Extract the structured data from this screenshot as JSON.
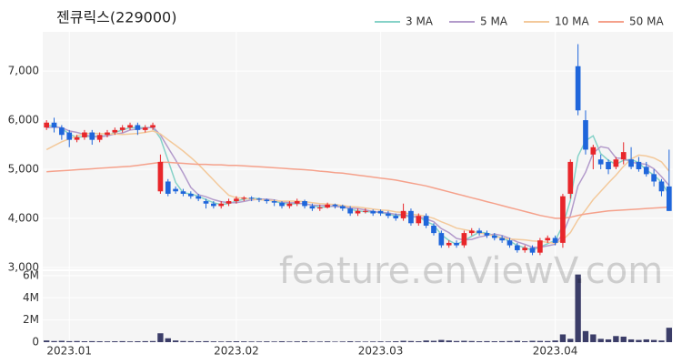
{
  "chart_data": {
    "type": "candlestick",
    "title": "젠큐릭스(229000)",
    "watermark": "feature.enViewV.com",
    "legend": "top-right",
    "grid": true,
    "up_color": "#e8262a",
    "down_color": "#1f66db",
    "categories": [
      null,
      null,
      null,
      "2023.01",
      null,
      null,
      null,
      null,
      null,
      null,
      null,
      null,
      null,
      null,
      null,
      null,
      null,
      null,
      null,
      null,
      null,
      null,
      null,
      null,
      null,
      "2023.02",
      null,
      null,
      null,
      null,
      null,
      null,
      null,
      null,
      null,
      null,
      null,
      null,
      null,
      null,
      null,
      null,
      null,
      null,
      "2023.03",
      null,
      null,
      null,
      null,
      null,
      null,
      null,
      null,
      null,
      null,
      null,
      null,
      null,
      null,
      null,
      null,
      null,
      null,
      null,
      null,
      null,
      null,
      "2023.04",
      null,
      null,
      null,
      null,
      null,
      null,
      null,
      null,
      null,
      null,
      null,
      null,
      null,
      null,
      null
    ],
    "open": [
      5850,
      5950,
      5850,
      5750,
      5600,
      5650,
      5750,
      5600,
      5700,
      5750,
      5800,
      5850,
      5900,
      5800,
      5850,
      4550,
      4750,
      4600,
      4550,
      4500,
      4450,
      4350,
      4300,
      4250,
      4300,
      4350,
      4400,
      4420,
      4400,
      4380,
      4350,
      4320,
      4250,
      4300,
      4350,
      4250,
      4200,
      4220,
      4280,
      4250,
      4200,
      4100,
      4150,
      4150,
      4150,
      4100,
      4050,
      4000,
      4150,
      3900,
      4050,
      3850,
      3700,
      3450,
      3500,
      3450,
      3700,
      3750,
      3700,
      3650,
      3600,
      3550,
      3450,
      3350,
      3400,
      3300,
      3550,
      3600,
      3500,
      4500,
      7100,
      6000,
      5300,
      5200,
      5150,
      5050,
      5200,
      5200,
      5150,
      5050,
      4900,
      4750,
      4650
    ],
    "high": [
      6000,
      6050,
      5900,
      5800,
      5700,
      5800,
      5800,
      5750,
      5800,
      5850,
      5900,
      5950,
      5950,
      5900,
      5950,
      5300,
      4800,
      4650,
      4600,
      4550,
      4500,
      4400,
      4350,
      4350,
      4400,
      4450,
      4450,
      4450,
      4420,
      4400,
      4380,
      4350,
      4350,
      4400,
      4380,
      4300,
      4280,
      4320,
      4300,
      4280,
      4250,
      4200,
      4200,
      4180,
      4180,
      4150,
      4100,
      4300,
      4200,
      4100,
      4100,
      3900,
      3750,
      3550,
      3550,
      3750,
      3800,
      3800,
      3750,
      3700,
      3650,
      3600,
      3500,
      3450,
      3450,
      3600,
      3650,
      3650,
      4500,
      5200,
      7550,
      6200,
      5500,
      5300,
      5200,
      5250,
      5550,
      5450,
      5250,
      5150,
      5000,
      4800,
      5400
    ],
    "low": [
      5800,
      5750,
      5600,
      5450,
      5550,
      5600,
      5500,
      5550,
      5650,
      5700,
      5750,
      5800,
      5700,
      5750,
      5800,
      4500,
      4450,
      4500,
      4450,
      4400,
      4350,
      4200,
      4200,
      4200,
      4250,
      4300,
      4350,
      4350,
      4330,
      4300,
      4250,
      4200,
      4200,
      4250,
      4200,
      4150,
      4150,
      4200,
      4200,
      4150,
      4050,
      4050,
      4100,
      4050,
      4050,
      4000,
      3950,
      3950,
      3850,
      3850,
      3800,
      3650,
      3400,
      3400,
      3400,
      3400,
      3650,
      3650,
      3600,
      3550,
      3500,
      3400,
      3300,
      3300,
      3250,
      3250,
      3500,
      3450,
      3400,
      4400,
      6100,
      5300,
      5000,
      5000,
      4900,
      5000,
      5100,
      5000,
      4950,
      4850,
      4650,
      4450,
      4150
    ],
    "close": [
      5950,
      5850,
      5700,
      5600,
      5650,
      5750,
      5600,
      5700,
      5750,
      5800,
      5850,
      5900,
      5800,
      5850,
      5900,
      5150,
      4500,
      4550,
      4500,
      4450,
      4400,
      4300,
      4250,
      4300,
      4350,
      4400,
      4420,
      4400,
      4380,
      4350,
      4320,
      4250,
      4300,
      4350,
      4250,
      4200,
      4220,
      4280,
      4250,
      4200,
      4100,
      4150,
      4150,
      4100,
      4100,
      4050,
      4000,
      4150,
      3900,
      4050,
      3850,
      3700,
      3450,
      3500,
      3450,
      3700,
      3750,
      3700,
      3650,
      3600,
      3550,
      3450,
      3350,
      3400,
      3300,
      3550,
      3600,
      3500,
      4450,
      5150,
      6200,
      5400,
      5450,
      5100,
      5000,
      5200,
      5350,
      5050,
      5000,
      4900,
      4750,
      4550,
      4150
    ],
    "ylim": [
      2960,
      7800
    ],
    "yticks": [
      {
        "value": 3000,
        "label": "3,000"
      },
      {
        "value": 4000,
        "label": "4,000"
      },
      {
        "value": 5000,
        "label": "5,000"
      },
      {
        "value": 6000,
        "label": "6,000"
      },
      {
        "value": 7000,
        "label": "7,000"
      }
    ],
    "series": [
      {
        "name": "3 MA",
        "color": "#86d2c8",
        "values": [
          5900,
          5880,
          5833,
          5717,
          5650,
          5667,
          5667,
          5683,
          5683,
          5750,
          5800,
          5850,
          5850,
          5850,
          5850,
          5633,
          5183,
          4733,
          4517,
          4500,
          4450,
          4383,
          4317,
          4283,
          4300,
          4350,
          4390,
          4407,
          4400,
          4377,
          4350,
          4307,
          4290,
          4300,
          4300,
          4267,
          4223,
          4233,
          4250,
          4243,
          4183,
          4150,
          4133,
          4133,
          4117,
          4083,
          4050,
          4067,
          4017,
          4033,
          3933,
          3867,
          3667,
          3550,
          3467,
          3550,
          3633,
          3717,
          3700,
          3650,
          3600,
          3533,
          3450,
          3400,
          3350,
          3417,
          3483,
          3550,
          3850,
          4367,
          5267,
          5583,
          5683,
          5317,
          5183,
          5100,
          5183,
          5200,
          5133,
          4983,
          4883,
          4733,
          4483
        ]
      },
      {
        "name": "5 MA",
        "color": "#b39bcb",
        "values": [
          5850,
          5860,
          5850,
          5780,
          5750,
          5710,
          5660,
          5660,
          5680,
          5720,
          5740,
          5800,
          5820,
          5840,
          5860,
          5700,
          5440,
          5190,
          4920,
          4630,
          4480,
          4440,
          4380,
          4340,
          4320,
          4320,
          4344,
          4374,
          4390,
          4390,
          4374,
          4340,
          4320,
          4314,
          4294,
          4270,
          4264,
          4260,
          4240,
          4230,
          4210,
          4196,
          4170,
          4140,
          4120,
          4110,
          4080,
          4080,
          4040,
          4030,
          3990,
          3930,
          3790,
          3710,
          3590,
          3560,
          3570,
          3620,
          3650,
          3680,
          3650,
          3590,
          3520,
          3470,
          3410,
          3410,
          3440,
          3470,
          3680,
          4060,
          4660,
          4940,
          5330,
          5460,
          5430,
          5230,
          5220,
          5140,
          5120,
          5100,
          5010,
          4850,
          4670
        ]
      },
      {
        "name": "10 MA",
        "color": "#f3c99b",
        "values": [
          5400,
          5480,
          5560,
          5620,
          5680,
          5730,
          5730,
          5730,
          5720,
          5720,
          5710,
          5720,
          5730,
          5750,
          5780,
          5720,
          5600,
          5490,
          5370,
          5240,
          5100,
          4940,
          4780,
          4620,
          4470,
          4420,
          4410,
          4390,
          4380,
          4370,
          4360,
          4350,
          4350,
          4350,
          4340,
          4320,
          4300,
          4290,
          4280,
          4260,
          4240,
          4230,
          4210,
          4190,
          4170,
          4160,
          4130,
          4120,
          4080,
          4070,
          4040,
          4000,
          3930,
          3870,
          3800,
          3770,
          3740,
          3700,
          3680,
          3630,
          3600,
          3580,
          3570,
          3560,
          3540,
          3530,
          3510,
          3490,
          3560,
          3710,
          3970,
          4170,
          4380,
          4550,
          4720,
          4880,
          5060,
          5210,
          5290,
          5270,
          5230,
          5150,
          4960
        ]
      },
      {
        "name": "50 MA",
        "color": "#f5a18b",
        "values": [
          4950,
          4960,
          4970,
          4980,
          4990,
          5000,
          5010,
          5020,
          5030,
          5040,
          5050,
          5060,
          5080,
          5100,
          5120,
          5140,
          5140,
          5130,
          5120,
          5110,
          5100,
          5100,
          5090,
          5090,
          5080,
          5080,
          5070,
          5060,
          5050,
          5040,
          5030,
          5020,
          5010,
          5000,
          4990,
          4980,
          4960,
          4950,
          4930,
          4920,
          4900,
          4880,
          4860,
          4840,
          4820,
          4800,
          4780,
          4750,
          4720,
          4690,
          4660,
          4620,
          4580,
          4540,
          4500,
          4460,
          4420,
          4380,
          4340,
          4300,
          4260,
          4220,
          4180,
          4140,
          4100,
          4060,
          4030,
          4000,
          4000,
          4020,
          4060,
          4090,
          4110,
          4130,
          4150,
          4160,
          4170,
          4180,
          4190,
          4200,
          4210,
          4220,
          4230
        ]
      }
    ],
    "volume": {
      "color": "#3b3d68",
      "ylim": [
        0,
        6400000
      ],
      "yticks": [
        0,
        {
          "value": 2000000,
          "label": "2M"
        },
        {
          "value": 4000000,
          "label": "4M"
        },
        {
          "value": 6000000,
          "label": "6M"
        }
      ],
      "values": [
        150000,
        100000,
        120000,
        90000,
        100000,
        80000,
        90000,
        80000,
        70000,
        80000,
        90000,
        70000,
        80000,
        90000,
        100000,
        800000,
        350000,
        150000,
        100000,
        90000,
        80000,
        90000,
        70000,
        60000,
        70000,
        80000,
        70000,
        60000,
        60000,
        70000,
        60000,
        80000,
        60000,
        70000,
        80000,
        60000,
        60000,
        70000,
        50000,
        60000,
        80000,
        60000,
        50000,
        60000,
        70000,
        60000,
        80000,
        120000,
        100000,
        80000,
        150000,
        120000,
        200000,
        150000,
        100000,
        120000,
        100000,
        80000,
        90000,
        80000,
        90000,
        100000,
        120000,
        80000,
        120000,
        110000,
        100000,
        150000,
        700000,
        300000,
        6100000,
        1000000,
        700000,
        300000,
        250000,
        550000,
        500000,
        250000,
        200000,
        250000,
        200000,
        150000,
        1300000
      ]
    }
  }
}
